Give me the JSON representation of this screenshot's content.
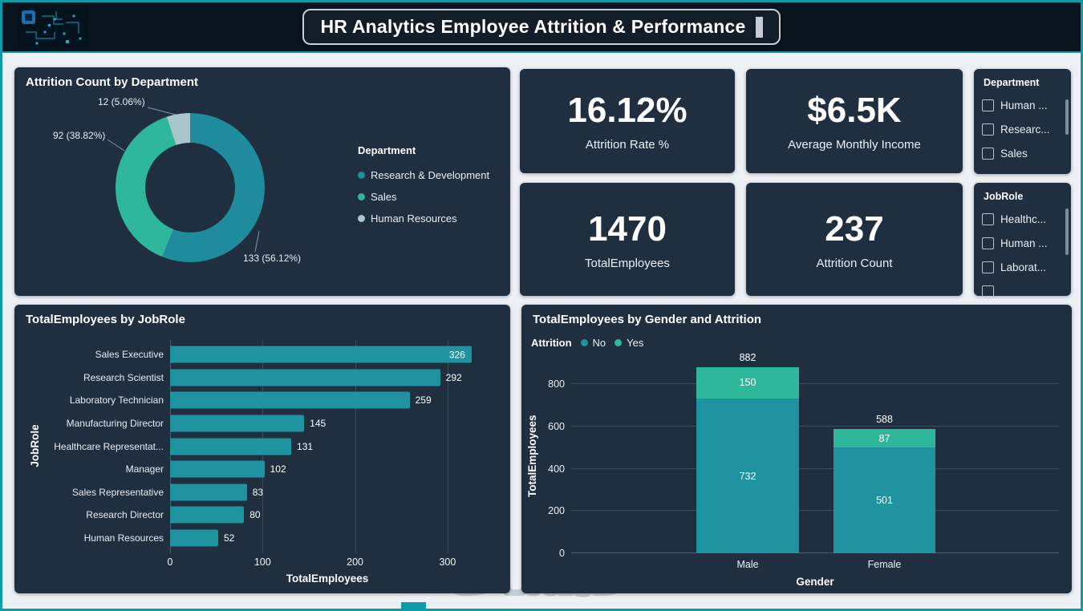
{
  "header": {
    "title": "HR Analytics Employee Attrition & Performance"
  },
  "kpis": [
    {
      "value": "16.12%",
      "label": "Attrition Rate %"
    },
    {
      "value": "$6.5K",
      "label": "Average Monthly Income"
    },
    {
      "value": "1470",
      "label": "TotalEmployees"
    },
    {
      "value": "237",
      "label": "Attrition Count"
    }
  ],
  "slicers": {
    "department": {
      "title": "Department",
      "items": [
        "Human ...",
        "Researc...",
        "Sales"
      ]
    },
    "jobrole": {
      "title": "JobRole",
      "items": [
        "Healthc...",
        "Human ...",
        "Laborat..."
      ]
    }
  },
  "watermark": "خمسات",
  "colors": {
    "accent_teal": "#0e9aa8",
    "card_bg": "#1f2f40",
    "bar_teal": "#1f93a0",
    "green_teal": "#2eb79b",
    "muted_teal": "#a9c6cb"
  },
  "chart_data": [
    {
      "type": "pie",
      "title": "Attrition Count by Department",
      "legend_title": "Department",
      "legend_position": "right",
      "donut_hole": true,
      "categories": [
        "Research & Development",
        "Sales",
        "Human Resources"
      ],
      "values": [
        133,
        92,
        12
      ],
      "percents": [
        "56.12%",
        "38.82%",
        "5.06%"
      ],
      "point_labels": [
        "133 (56.12%)",
        "92 (38.82%)",
        "12 (5.06%)"
      ],
      "colors": [
        "#1e8c9c",
        "#2eb79b",
        "#a9c6cb"
      ]
    },
    {
      "type": "bar",
      "orientation": "horizontal",
      "title": "TotalEmployees by JobRole",
      "categories": [
        "Sales Executive",
        "Research Scientist",
        "Laboratory Technician",
        "Manufacturing Director",
        "Healthcare Representat...",
        "Manager",
        "Sales Representative",
        "Research Director",
        "Human Resources"
      ],
      "values": [
        326,
        292,
        259,
        145,
        131,
        102,
        83,
        80,
        52
      ],
      "xlabel": "TotalEmployees",
      "ylabel": "JobRole",
      "xlim": [
        0,
        340
      ],
      "xticks": [
        0,
        100,
        200,
        300
      ],
      "bar_color": "#1f93a0",
      "grid": true
    },
    {
      "type": "bar",
      "stacked": true,
      "title": "TotalEmployees by Gender and Attrition",
      "legend_title": "Attrition",
      "legend_position": "top-left",
      "categories": [
        "Male",
        "Female"
      ],
      "series": [
        {
          "name": "No",
          "color": "#1f93a0",
          "values": [
            732,
            501
          ]
        },
        {
          "name": "Yes",
          "color": "#2eb79b",
          "values": [
            150,
            87
          ]
        }
      ],
      "totals": [
        882,
        588
      ],
      "xlabel": "Gender",
      "ylabel": "TotalEmployees",
      "ylim": [
        0,
        900
      ],
      "yticks": [
        0,
        200,
        400,
        600,
        800
      ],
      "grid": true
    }
  ]
}
